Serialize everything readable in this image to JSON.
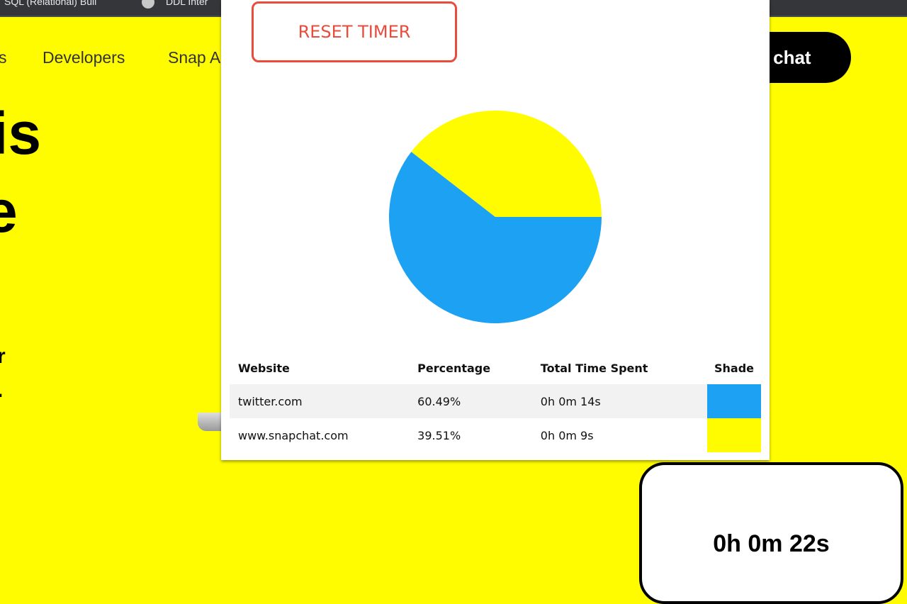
{
  "bookmarks": [
    "SQL (Relational) Buil",
    "DDL Inter"
  ],
  "nav": {
    "items": [
      "s",
      "Developers",
      "Snap A"
    ],
    "cta": "o chat"
  },
  "hero": {
    "fragments": [
      "is",
      "e",
      "r",
      "."
    ]
  },
  "popup": {
    "reset_label": "RESET TIMER",
    "table": {
      "headers": [
        "Website",
        "Percentage",
        "Total Time Spent",
        "Shade"
      ],
      "rows": [
        {
          "website": "twitter.com",
          "percentage": "60.49%",
          "time": "0h 0m 14s",
          "color": "#1da1f2"
        },
        {
          "website": "www.snapchat.com",
          "percentage": "39.51%",
          "time": "0h 0m 9s",
          "color": "#fffc00"
        }
      ]
    }
  },
  "timer": {
    "total": "0h 0m 22s"
  },
  "chart_data": {
    "type": "pie",
    "categories": [
      "twitter.com",
      "www.snapchat.com"
    ],
    "values": [
      60.49,
      39.51
    ],
    "colors": [
      "#1da1f2",
      "#fffc00"
    ],
    "start": "3 o'clock, clockwise"
  }
}
